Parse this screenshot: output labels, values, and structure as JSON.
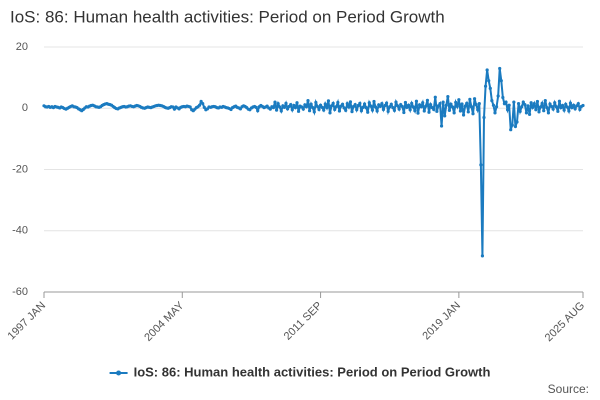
{
  "chart_data": {
    "type": "line",
    "title": "IoS: 86: Human health activities: Period on Period Growth",
    "categories": [
      "1997 JAN",
      null,
      null,
      null,
      null,
      null,
      null,
      null,
      null,
      null,
      null,
      null,
      null,
      null,
      null,
      null,
      null,
      null,
      null,
      null,
      null,
      null,
      null,
      null,
      null,
      null,
      null,
      null,
      null,
      null,
      null,
      null,
      null,
      null,
      null,
      null,
      null,
      null,
      null,
      null,
      null,
      null,
      null,
      null,
      null,
      null,
      null,
      null,
      null,
      null,
      null,
      null,
      null,
      null,
      null,
      null,
      null,
      null,
      null,
      null,
      null,
      null,
      null,
      null,
      null,
      null,
      null,
      null,
      null,
      null,
      null,
      null,
      null,
      null,
      null,
      null,
      null,
      null,
      null,
      null,
      null,
      null,
      null,
      null,
      null,
      null,
      null,
      null,
      "2004 MAY",
      null,
      null,
      null,
      null,
      null,
      null,
      null,
      null,
      null,
      null,
      null,
      null,
      null,
      null,
      null,
      null,
      null,
      null,
      null,
      null,
      null,
      null,
      null,
      null,
      null,
      null,
      null,
      null,
      null,
      null,
      null,
      null,
      null,
      null,
      null,
      null,
      null,
      null,
      null,
      null,
      null,
      null,
      null,
      null,
      null,
      null,
      null,
      null,
      null,
      null,
      null,
      null,
      null,
      null,
      null,
      null,
      null,
      null,
      null,
      null,
      null,
      null,
      null,
      null,
      null,
      null,
      null,
      null,
      null,
      null,
      null,
      null,
      null,
      null,
      null,
      null,
      null,
      null,
      null,
      null,
      null,
      null,
      null,
      null,
      null,
      null,
      null,
      "2011 SEP",
      null,
      null,
      null,
      null,
      null,
      null,
      null,
      null,
      null,
      null,
      null,
      null,
      null,
      null,
      null,
      null,
      null,
      null,
      null,
      null,
      null,
      null,
      null,
      null,
      null,
      null,
      null,
      null,
      null,
      null,
      null,
      null,
      null,
      null,
      null,
      null,
      null,
      null,
      null,
      null,
      null,
      null,
      null,
      null,
      null,
      null,
      null,
      null,
      null,
      null,
      null,
      null,
      null,
      null,
      null,
      null,
      null,
      null,
      null,
      null,
      null,
      null,
      null,
      null,
      null,
      null,
      null,
      null,
      null,
      null,
      null,
      null,
      null,
      null,
      null,
      null,
      null,
      null,
      null,
      null,
      null,
      null,
      null,
      null,
      null,
      null,
      null,
      "2019 JAN",
      null,
      null,
      null,
      null,
      null,
      null,
      null,
      null,
      null,
      null,
      null,
      null,
      null,
      null,
      null,
      null,
      null,
      null,
      null,
      null,
      null,
      null,
      null,
      null,
      null,
      null,
      null,
      null,
      null,
      null,
      null,
      null,
      null,
      null,
      null,
      null,
      null,
      null,
      null,
      null,
      null,
      null,
      null,
      null,
      null,
      null,
      null,
      null,
      null,
      null,
      null,
      null,
      null,
      null,
      null,
      null,
      null,
      null,
      null,
      null,
      null,
      null,
      null,
      null,
      null,
      null,
      null,
      null,
      null,
      null,
      null,
      null,
      null,
      null,
      null,
      null,
      null,
      null,
      "2025 AUG"
    ],
    "series": [
      {
        "name": "IoS: 86: Human health activities: Period on Period Growth",
        "color": "#1b7bc0",
        "values": [
          0.8,
          0.5,
          0.4,
          0.6,
          0.3,
          0.5,
          0.2,
          0.6,
          0.4,
          0.3,
          0.1,
          0.4,
          0.2,
          -0.1,
          -0.3,
          0.0,
          0.3,
          0.6,
          0.8,
          0.5,
          0.4,
          0.2,
          -0.2,
          -0.5,
          -0.8,
          -0.4,
          0.1,
          0.5,
          0.4,
          0.7,
          0.9,
          1.0,
          0.8,
          0.5,
          0.4,
          0.3,
          0.5,
          0.9,
          1.2,
          1.4,
          1.5,
          1.3,
          1.2,
          1.0,
          0.6,
          0.2,
          -0.1,
          -0.2,
          0.1,
          0.3,
          0.5,
          0.6,
          0.4,
          0.5,
          0.7,
          0.8,
          0.6,
          0.5,
          0.7,
          0.9,
          0.8,
          0.6,
          0.3,
          0.1,
          0.0,
          0.2,
          0.4,
          0.3,
          0.2,
          0.4,
          0.6,
          0.8,
          0.9,
          1.0,
          0.9,
          0.8,
          0.6,
          0.3,
          0.1,
          0.0,
          0.2,
          0.5,
          0.4,
          -0.3,
          0.4,
          0.1,
          -0.2,
          0.3,
          0.5,
          0.6,
          0.5,
          0.7,
          0.6,
          0.4,
          -0.5,
          -0.8,
          -0.3,
          0.2,
          0.5,
          1.0,
          2.2,
          1.5,
          0.3,
          -0.5,
          -0.2,
          0.4,
          0.3,
          0.5,
          0.6,
          0.5,
          0.2,
          0.1,
          0.4,
          0.3,
          0.6,
          0.4,
          0.2,
          0.1,
          -0.1,
          -0.4,
          0.2,
          0.5,
          0.7,
          0.3,
          0.1,
          -0.2,
          0.5,
          0.8,
          0.6,
          0.2,
          -0.3,
          -0.5,
          0.1,
          0.4,
          0.6,
          0.3,
          -0.8,
          0.5,
          0.9,
          0.6,
          0.2,
          0.4,
          0.7,
          0.1,
          -0.3,
          0.5,
          0.2,
          2.0,
          -0.6,
          1.5,
          0.4,
          -0.9,
          0.8,
          0.3,
          1.6,
          -0.2,
          0.6,
          1.2,
          -0.5,
          0.9,
          0.2,
          1.8,
          -1.0,
          0.7,
          0.4,
          -0.3,
          1.1,
          0.5,
          2.5,
          -0.8,
          1.3,
          0.2,
          -1.2,
          1.9,
          0.6,
          -0.4,
          1.0,
          0.3,
          -0.6,
          1.4,
          0.2,
          2.4,
          -1.5,
          0.8,
          1.6,
          -0.4,
          0.5,
          1.9,
          -0.9,
          0.7,
          1.3,
          0.1,
          -0.7,
          1.5,
          0.4,
          2.1,
          -1.1,
          0.6,
          1.2,
          -0.5,
          0.9,
          1.6,
          -0.8,
          0.3,
          1.4,
          0.2,
          -1.3,
          1.8,
          0.7,
          -0.6,
          2.2,
          0.4,
          -0.9,
          1.1,
          0.6,
          1.5,
          -0.4,
          0.9,
          1.7,
          -1.0,
          0.5,
          1.3,
          0.2,
          -0.7,
          2.0,
          0.8,
          -0.3,
          1.2,
          0.6,
          -1.4,
          1.9,
          0.3,
          1.0,
          -0.5,
          1.6,
          0.4,
          -0.8,
          2.3,
          -1.6,
          1.1,
          0.5,
          1.8,
          -0.9,
          0.7,
          2.6,
          -1.3,
          1.2,
          0.2,
          -0.4,
          3.6,
          -1.0,
          0.8,
          1.5,
          -5.8,
          2.0,
          -2.5,
          1.0,
          3.8,
          -0.7,
          1.3,
          0.4,
          -1.5,
          1.9,
          0.6,
          2.8,
          -0.9,
          1.4,
          -2.2,
          0.7,
          1.6,
          -1.2,
          2.9,
          0.5,
          -1.8,
          3.1,
          1.2,
          -0.5,
          1.5,
          -18.5,
          -48.2,
          -3.0,
          7.2,
          12.5,
          9.0,
          6.5,
          2.5,
          1.0,
          -1.5,
          0.5,
          4.0,
          13.0,
          9.0,
          3.5,
          1.5,
          2.0,
          -0.5,
          1.0,
          -7.0,
          -5.5,
          2.0,
          -6.0,
          -4.5,
          1.5,
          -1.0,
          0.5,
          2.0,
          1.2,
          -1.5,
          0.8,
          -2.0,
          1.8,
          0.3,
          1.5,
          -0.5,
          2.2,
          -1.2,
          0.4,
          1.6,
          -0.8,
          2.5,
          0.2,
          -1.5,
          1.4,
          0.6,
          -0.3,
          1.8,
          0.5,
          -1.0,
          2.3,
          0.2,
          0.9,
          -0.6,
          1.3,
          0.4,
          -0.9,
          1.7,
          0.2,
          1.0,
          -0.2,
          0.8,
          1.5,
          -0.4,
          0.6,
          0.9
        ]
      }
    ],
    "ylim": [
      -60,
      20
    ],
    "yticks": [
      -60,
      -40,
      -20,
      0,
      20
    ],
    "grid": true,
    "legend": "bottom",
    "source": "Source:"
  }
}
